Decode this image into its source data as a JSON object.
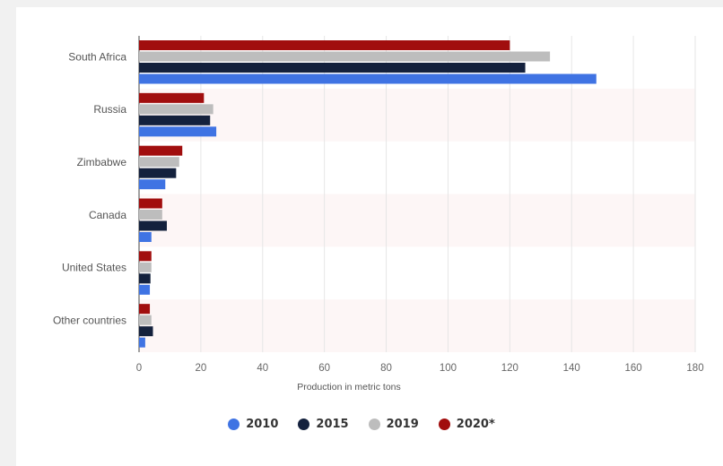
{
  "chart_data": {
    "type": "bar",
    "orientation": "horizontal",
    "categories": [
      "South Africa",
      "Russia",
      "Zimbabwe",
      "Canada",
      "United States",
      "Other countries"
    ],
    "series": [
      {
        "name": "2010",
        "color": "#3f73e3",
        "values": [
          148,
          25,
          8.5,
          4,
          3.5,
          2
        ]
      },
      {
        "name": "2015",
        "color": "#14213d",
        "values": [
          125,
          23,
          12,
          9,
          3.7,
          4.5
        ]
      },
      {
        "name": "2019",
        "color": "#bdbdbd",
        "values": [
          133,
          24,
          13,
          7.5,
          4,
          4
        ]
      },
      {
        "name": "2020*",
        "color": "#a10e0e",
        "values": [
          120,
          21,
          14,
          7.5,
          4,
          3.5
        ]
      }
    ],
    "xlabel": "Production in metric tons",
    "xlim": [
      0,
      180
    ],
    "xticks": [
      0,
      20,
      40,
      60,
      80,
      100,
      120,
      140,
      160,
      180
    ],
    "grid": true,
    "legend_position": "bottom"
  }
}
